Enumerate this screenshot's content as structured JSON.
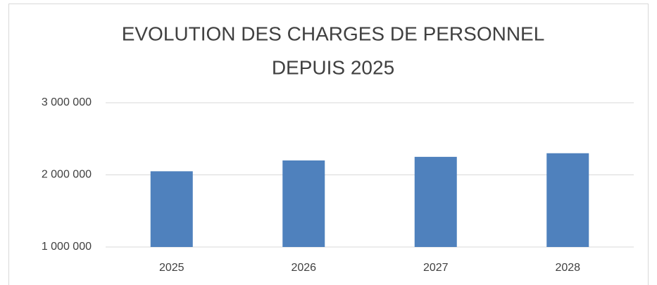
{
  "chart_data": {
    "type": "bar",
    "title": [
      "EVOLUTION DES CHARGES DE PERSONNEL",
      "DEPUIS 2025"
    ],
    "categories": [
      "2025",
      "2026",
      "2027",
      "2028"
    ],
    "values": [
      2050000,
      2200000,
      2250000,
      2300000
    ],
    "color": "#4f81bd",
    "ylim": [
      1000000,
      3000000
    ],
    "yticks": [
      {
        "value": 1000000,
        "label": "1 000 000"
      },
      {
        "value": 2000000,
        "label": "2 000 000"
      },
      {
        "value": 3000000,
        "label": "3 000 000"
      }
    ],
    "grid": true
  }
}
